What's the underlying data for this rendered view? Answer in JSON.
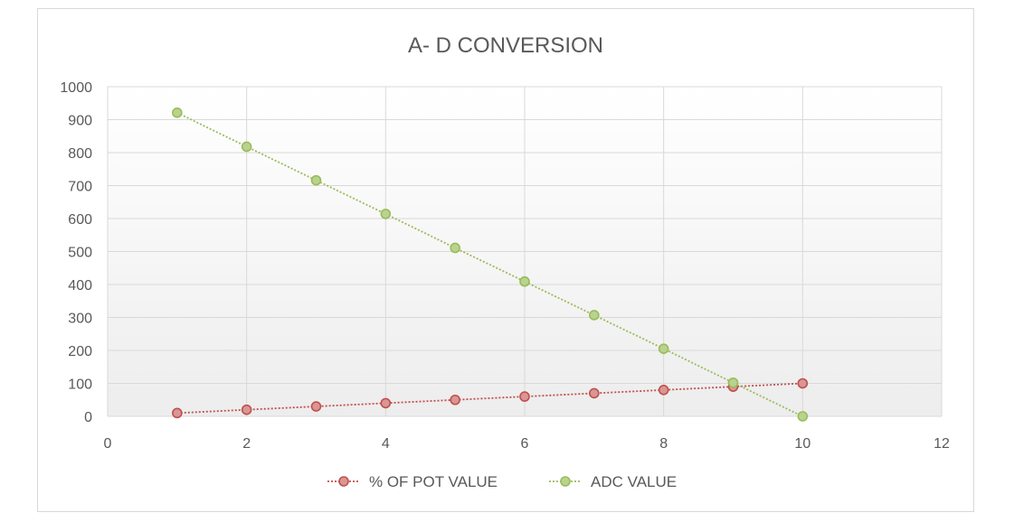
{
  "chart_data": {
    "type": "line",
    "title": "A- D CONVERSION",
    "xlabel": "",
    "ylabel": "",
    "xlim": [
      0,
      12
    ],
    "ylim": [
      0,
      1000
    ],
    "xticks": [
      "0",
      "2",
      "4",
      "6",
      "8",
      "10",
      "12"
    ],
    "yticks": [
      "0",
      "100",
      "200",
      "300",
      "400",
      "500",
      "600",
      "700",
      "800",
      "900",
      "1000"
    ],
    "grid": true,
    "legend_position": "bottom",
    "series": [
      {
        "name": "% OF POT VALUE",
        "color": "#c0504d",
        "fill": "#d99694",
        "x": [
          1,
          2,
          3,
          4,
          5,
          6,
          7,
          8,
          9,
          10
        ],
        "y": [
          10,
          20,
          30,
          40,
          50,
          60,
          70,
          80,
          90,
          100
        ]
      },
      {
        "name": "ADC VALUE",
        "color": "#9bbb59",
        "fill": "#b8d38f",
        "x": [
          1,
          2,
          3,
          4,
          5,
          6,
          7,
          8,
          9,
          10
        ],
        "y": [
          921,
          818,
          716,
          614,
          511,
          409,
          307,
          205,
          102,
          0
        ]
      }
    ]
  }
}
